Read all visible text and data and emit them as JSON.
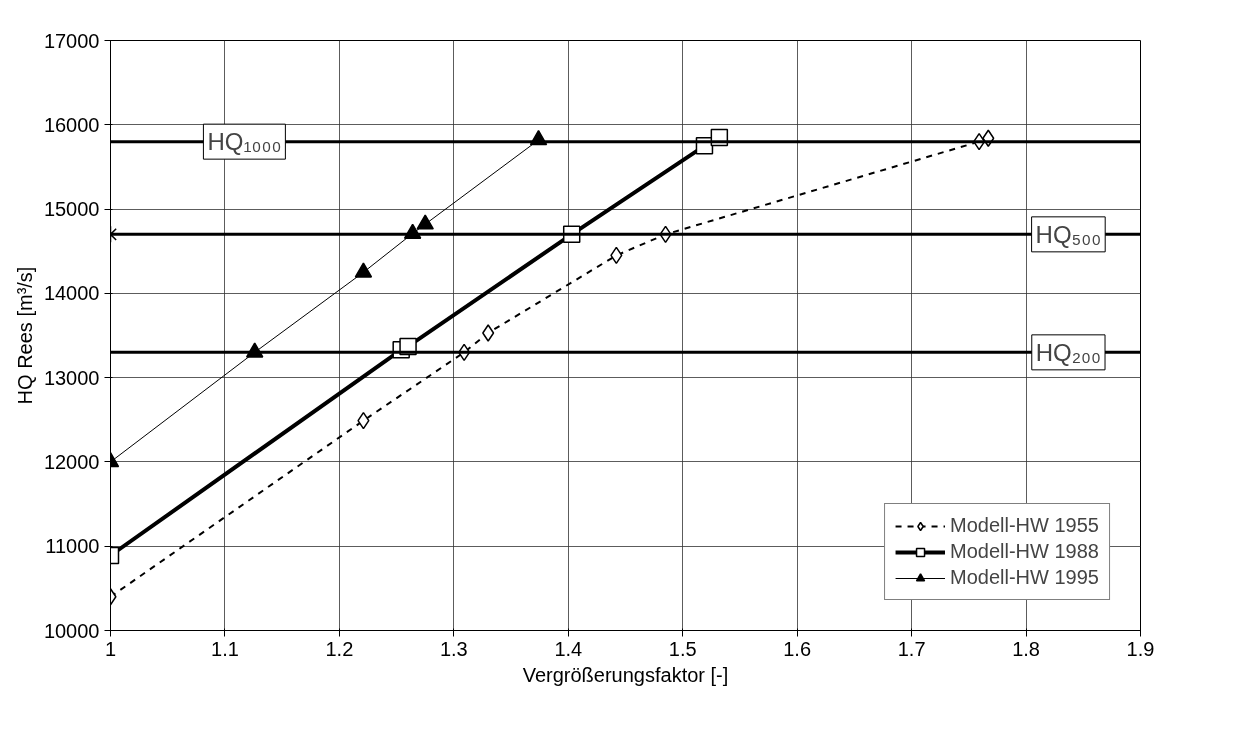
{
  "chart_data": {
    "type": "line",
    "xlabel": "Vergrößerungsfaktor [-]",
    "ylabel": "HQ Rees [m³/s]",
    "xlim": [
      1,
      1.9
    ],
    "xticks": [
      1,
      1.1,
      1.2,
      1.3,
      1.4,
      1.5,
      1.6,
      1.7,
      1.8,
      1.9
    ],
    "ylim": [
      10000,
      17000
    ],
    "yticks": [
      10000,
      11000,
      12000,
      13000,
      14000,
      15000,
      16000,
      17000
    ],
    "grid": true,
    "legend": "bottom right",
    "series": [
      {
        "name": "Modell-HW 1955",
        "color": "#000000",
        "marker": "diamond",
        "line_style": "dashed",
        "x": [
          1,
          1.221,
          1.309,
          1.33,
          1.442,
          1.485,
          1.759,
          1.767
        ],
        "values": [
          10400,
          12490,
          13300,
          13530,
          14450,
          14700,
          15800,
          15840
        ]
      },
      {
        "name": "Modell-HW 1988",
        "color": "#000000",
        "marker": "square",
        "line_style": "solid",
        "x": [
          1,
          1.254,
          1.26,
          1.403,
          1.519,
          1.532
        ],
        "values": [
          10890,
          13330,
          13370,
          14700,
          15750,
          15850
        ]
      },
      {
        "name": "Modell-HW 1995",
        "color": "#000000",
        "marker": "triangle",
        "line_style": "solid",
        "x": [
          1,
          1.126,
          1.221,
          1.264,
          1.275,
          1.374
        ],
        "values": [
          12000,
          13300,
          14250,
          14710,
          14820,
          15820
        ]
      },
      {
        "type": "scatter",
        "color": "#000000",
        "marker": "cross",
        "x": [
          1
        ],
        "values": [
          14700
        ]
      }
    ],
    "ref_lines": [
      {
        "axis": "y",
        "value": 15800,
        "label": "HQ₁₀₀₀"
      },
      {
        "axis": "y",
        "value": 14700,
        "label": "HQ₅₀₀"
      },
      {
        "axis": "y",
        "value": 13300,
        "label": "HQ₂₀₀"
      }
    ]
  }
}
